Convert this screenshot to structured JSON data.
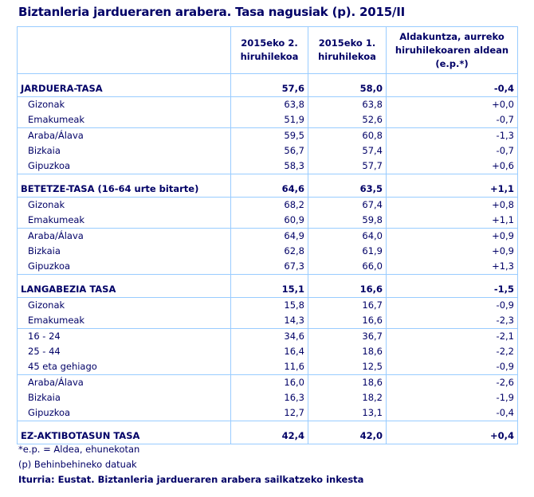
{
  "title": "Biztanleria jardueraren arabera. Tasa nagusiak (p). 2015/II",
  "columns": [
    "",
    "2015eko 2. hiruhilekoa",
    "2015eko 1. hiruhilekoa",
    "Aldakuntza, aurreko hiruhilekoaren aldean (e.p.*)"
  ],
  "sections": [
    {
      "label": "JARDUERA-TASA",
      "values": [
        "57,6",
        "58,0",
        "-0,4"
      ],
      "groups": [
        [
          {
            "label": "Gizonak",
            "values": [
              "63,8",
              "63,8",
              "+0,0"
            ]
          },
          {
            "label": "Emakumeak",
            "values": [
              "51,9",
              "52,6",
              "-0,7"
            ]
          }
        ],
        [
          {
            "label": "Araba/Álava",
            "values": [
              "59,5",
              "60,8",
              "-1,3"
            ]
          },
          {
            "label": "Bizkaia",
            "values": [
              "56,7",
              "57,4",
              "-0,7"
            ]
          },
          {
            "label": "Gipuzkoa",
            "values": [
              "58,3",
              "57,7",
              "+0,6"
            ]
          }
        ]
      ]
    },
    {
      "label": "BETETZE-TASA (16-64 urte bitarte)",
      "values": [
        "64,6",
        "63,5",
        "+1,1"
      ],
      "groups": [
        [
          {
            "label": "Gizonak",
            "values": [
              "68,2",
              "67,4",
              "+0,8"
            ]
          },
          {
            "label": "Emakumeak",
            "values": [
              "60,9",
              "59,8",
              "+1,1"
            ]
          }
        ],
        [
          {
            "label": "Araba/Álava",
            "values": [
              "64,9",
              "64,0",
              "+0,9"
            ]
          },
          {
            "label": "Bizkaia",
            "values": [
              "62,8",
              "61,9",
              "+0,9"
            ]
          },
          {
            "label": "Gipuzkoa",
            "values": [
              "67,3",
              "66,0",
              "+1,3"
            ]
          }
        ]
      ]
    },
    {
      "label": "LANGABEZIA TASA",
      "values": [
        "15,1",
        "16,6",
        "-1,5"
      ],
      "groups": [
        [
          {
            "label": "Gizonak",
            "values": [
              "15,8",
              "16,7",
              "-0,9"
            ]
          },
          {
            "label": "Emakumeak",
            "values": [
              "14,3",
              "16,6",
              "-2,3"
            ]
          }
        ],
        [
          {
            "label": "16 - 24",
            "values": [
              "34,6",
              "36,7",
              "-2,1"
            ]
          },
          {
            "label": "25 - 44",
            "values": [
              "16,4",
              "18,6",
              "-2,2"
            ]
          },
          {
            "label": "45 eta gehiago",
            "values": [
              "11,6",
              "12,5",
              "-0,9"
            ]
          }
        ],
        [
          {
            "label": "Araba/Álava",
            "values": [
              "16,0",
              "18,6",
              "-2,6"
            ]
          },
          {
            "label": "Bizkaia",
            "values": [
              "16,3",
              "18,2",
              "-1,9"
            ]
          },
          {
            "label": "Gipuzkoa",
            "values": [
              "12,7",
              "13,1",
              "-0,4"
            ]
          }
        ]
      ]
    },
    {
      "label": "EZ-AKTIBOTASUN  TASA",
      "values": [
        "42,4",
        "42,0",
        "+0,4"
      ],
      "groups": []
    }
  ],
  "footnotes": [
    "*e.p. = Aldea, ehunekotan",
    "(p) Behinbehineko datuak"
  ],
  "source": "Iturria: Eustat. Biztanleria jardueraren arabera sailkatzeko inkesta"
}
